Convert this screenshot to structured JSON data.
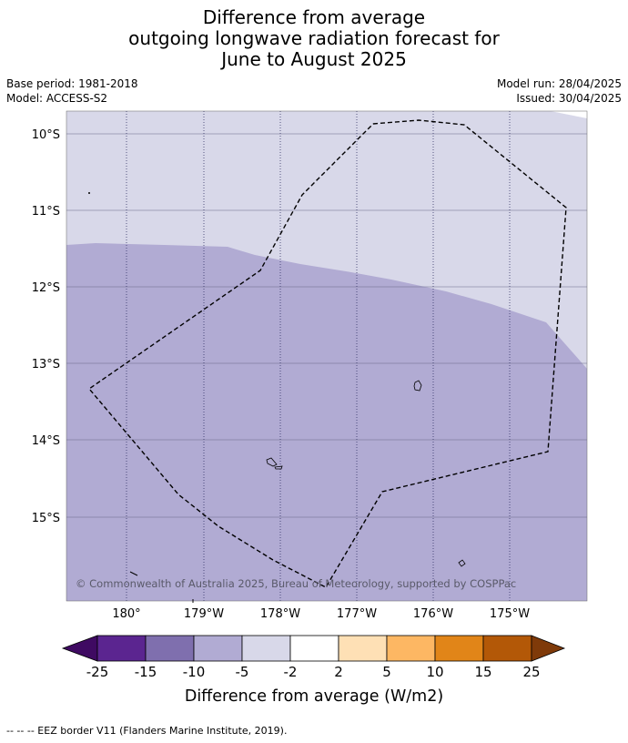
{
  "title": {
    "line1": "Difference from average",
    "line2": "outgoing longwave radiation forecast for",
    "line3": "June to August 2025"
  },
  "meta": {
    "base_period": "Base period: 1981-2018",
    "model": "Model: ACCESS-S2",
    "model_run": "Model run: 28/04/2025",
    "issued": "Issued: 30/04/2025"
  },
  "map": {
    "lat_labels": [
      "10°S",
      "11°S",
      "12°S",
      "13°S",
      "14°S",
      "15°S"
    ],
    "lon_labels": [
      "180°",
      "179°W",
      "178°W",
      "177°W",
      "176°W",
      "175°W"
    ],
    "copyright": "© Commonwealth of Australia 2025, Bureau of Meteorology, supported by COSPPac",
    "zones": [
      {
        "name": "-5 to -2",
        "color": "#d8d8e9"
      },
      {
        "name": "-10 to -5",
        "color": "#b1abd3"
      }
    ]
  },
  "colorbar": {
    "ticks": [
      "-25",
      "-15",
      "-10",
      "-5",
      "-2",
      "2",
      "5",
      "10",
      "15",
      "25"
    ],
    "colors": [
      "#3f0a62",
      "#5b2590",
      "#7f6fae",
      "#b1abd3",
      "#d8d8e9",
      "#ffffff",
      "#fee0b5",
      "#fdb763",
      "#e18518",
      "#b35807",
      "#7f3a09"
    ],
    "label": "Difference from average (W/m2)"
  },
  "footer": {
    "legend": "--  --  -- EEZ border V11 (Flanders Marine Institute, 2019)."
  }
}
